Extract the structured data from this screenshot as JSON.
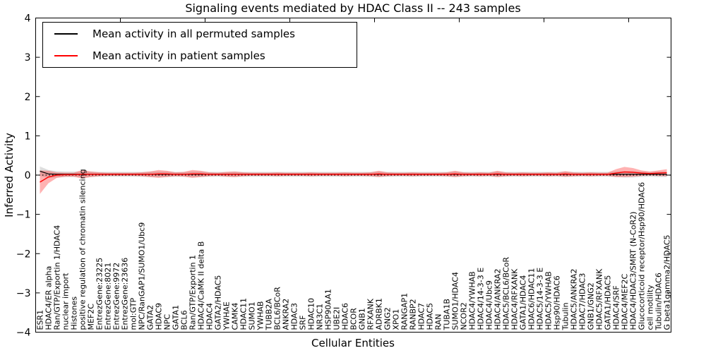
{
  "header": {
    "title": "Signaling events mediated by HDAC Class II -- 243 samples"
  },
  "axes": {
    "x_label": "Cellular Entities",
    "y_label": "Inferred Activity"
  },
  "chart_data": {
    "type": "line",
    "title": "Signaling events mediated by HDAC Class II -- 243 samples",
    "xlabel": "Cellular Entities",
    "ylabel": "Inferred Activity",
    "ylim": [
      -4,
      4
    ],
    "yticks": [
      -4,
      -3,
      -2,
      -1,
      0,
      1,
      2,
      3,
      4
    ],
    "grid": false,
    "legend_position": "upper left",
    "zero_line": {
      "y": 0,
      "style": "dotted",
      "color": "#000000"
    },
    "categories": [
      "ESR1",
      "HDAC4/ER alpha",
      "Ran/GTP/Exportin 1/HDAC4",
      "nuclear import",
      "Histones",
      "positive regulation of chromatin silencing",
      "MEF2C",
      "EntrezGene:23225",
      "EntrezGene:8021",
      "EntrezGene:9972",
      "EntrezGene:23636",
      "mol:GTP",
      "NPC/RanGAP1/SUMO1/Ubc9",
      "GATA2",
      "HDAC9",
      "NPC",
      "GATA1",
      "BCL6",
      "Ran/GTP/Exportin 1",
      "HDAC4/CaMK II delta B",
      "HDAC4",
      "GATA2/HDAC5",
      "YWHAE",
      "CAMK4",
      "HDAC11",
      "SUMO1",
      "YWHAB",
      "TUBB2A",
      "BCL6/BCoR",
      "ANKRA2",
      "HDAC3",
      "SRF",
      "HDAC10",
      "NR3C1",
      "HSP90AA1",
      "UBE2I",
      "HDAC6",
      "BCOR",
      "GNB1",
      "RFXANK",
      "ADRBK1",
      "GNG2",
      "XPO1",
      "RANGAP1",
      "RANBP2",
      "HDAC7",
      "HDAC5",
      "RAN",
      "TUBA1B",
      "SUMO1/HDAC4",
      "NCOR2",
      "HDAC4/YWHAB",
      "HDAC4/14-3-3 E",
      "HDAC4/Ubc9",
      "HDAC4/ANKRA2",
      "HDAC5/BCL6/BCoR",
      "HDAC4/RFXANK",
      "GATA1/HDAC4",
      "HDAC6/HDAC11",
      "HDAC5/14-3-3 E",
      "HDAC5/YWHAB",
      "Hsp90/HDAC6",
      "Tubulin",
      "HDAC5/ANKRA2",
      "HDAC7/HDAC3",
      "GNB1/GNG2",
      "HDAC5/RFXANK",
      "GATA1/HDAC5",
      "HDAC4/SRF",
      "HDAC4/MEF2C",
      "HDAC4/HDAC3/SMRT (N-CoR2)",
      "Glucocorticoid receptor/Hsp90/HDAC6",
      "cell motility",
      "Tubulin/HDAC6",
      "G beta1gamma2/HDAC5"
    ],
    "series": [
      {
        "name": "Mean activity in all permuted samples",
        "color": "#000000",
        "band_color": "rgba(0,0,0,0.13)",
        "values": [
          0.1,
          0.03,
          0.02,
          0.02,
          0.02,
          0.02,
          0.02,
          0.02,
          0.02,
          0.02,
          0.02,
          0.02,
          0.02,
          0.02,
          0.02,
          0.02,
          0.02,
          0.02,
          0.02,
          0.02,
          0.02,
          0.02,
          0.02,
          0.02,
          0.02,
          0.02,
          0.02,
          0.02,
          0.02,
          0.02,
          0.02,
          0.02,
          0.02,
          0.02,
          0.02,
          0.02,
          0.02,
          0.02,
          0.02,
          0.02,
          0.02,
          0.02,
          0.02,
          0.02,
          0.02,
          0.02,
          0.02,
          0.02,
          0.02,
          0.02,
          0.02,
          0.02,
          0.02,
          0.02,
          0.02,
          0.02,
          0.02,
          0.02,
          0.02,
          0.02,
          0.02,
          0.02,
          0.02,
          0.02,
          0.02,
          0.02,
          0.02,
          0.02,
          0.02,
          0.02,
          0.02,
          0.02,
          0.02,
          0.02,
          0.02
        ],
        "band": [
          0.12,
          0.1,
          0.08,
          0.07,
          0.07,
          0.07,
          0.07,
          0.06,
          0.06,
          0.06,
          0.06,
          0.06,
          0.06,
          0.07,
          0.07,
          0.07,
          0.06,
          0.06,
          0.07,
          0.07,
          0.06,
          0.06,
          0.06,
          0.07,
          0.06,
          0.06,
          0.06,
          0.06,
          0.06,
          0.06,
          0.06,
          0.06,
          0.06,
          0.06,
          0.06,
          0.06,
          0.06,
          0.06,
          0.06,
          0.06,
          0.07,
          0.06,
          0.06,
          0.06,
          0.06,
          0.06,
          0.06,
          0.06,
          0.06,
          0.07,
          0.06,
          0.06,
          0.06,
          0.06,
          0.07,
          0.06,
          0.06,
          0.06,
          0.06,
          0.06,
          0.06,
          0.06,
          0.07,
          0.06,
          0.06,
          0.06,
          0.06,
          0.06,
          0.07,
          0.08,
          0.08,
          0.07,
          0.06,
          0.07,
          0.07
        ]
      },
      {
        "name": "Mean activity in patient samples",
        "color": "#ff0000",
        "band_color": "rgba(255,0,0,0.30)",
        "values": [
          -0.18,
          -0.05,
          0.0,
          0.01,
          0.01,
          0.02,
          0.02,
          0.02,
          0.02,
          0.02,
          0.02,
          0.02,
          0.02,
          0.02,
          0.03,
          0.03,
          0.02,
          0.02,
          0.03,
          0.03,
          0.02,
          0.02,
          0.02,
          0.02,
          0.02,
          0.02,
          0.02,
          0.02,
          0.02,
          0.02,
          0.02,
          0.02,
          0.02,
          0.02,
          0.02,
          0.02,
          0.02,
          0.02,
          0.02,
          0.02,
          0.03,
          0.02,
          0.02,
          0.02,
          0.02,
          0.02,
          0.02,
          0.02,
          0.02,
          0.03,
          0.02,
          0.02,
          0.02,
          0.02,
          0.03,
          0.02,
          0.02,
          0.02,
          0.02,
          0.02,
          0.02,
          0.02,
          0.03,
          0.02,
          0.02,
          0.02,
          0.02,
          0.02,
          0.05,
          0.08,
          0.07,
          0.05,
          0.04,
          0.05,
          0.06
        ],
        "band": [
          0.3,
          0.16,
          0.07,
          0.05,
          0.05,
          0.11,
          0.07,
          0.05,
          0.04,
          0.04,
          0.04,
          0.04,
          0.05,
          0.07,
          0.1,
          0.08,
          0.05,
          0.06,
          0.1,
          0.08,
          0.05,
          0.04,
          0.06,
          0.07,
          0.05,
          0.04,
          0.04,
          0.04,
          0.05,
          0.04,
          0.04,
          0.04,
          0.05,
          0.04,
          0.04,
          0.04,
          0.05,
          0.04,
          0.04,
          0.05,
          0.08,
          0.05,
          0.04,
          0.04,
          0.05,
          0.04,
          0.04,
          0.04,
          0.05,
          0.08,
          0.05,
          0.04,
          0.05,
          0.04,
          0.08,
          0.05,
          0.04,
          0.05,
          0.04,
          0.04,
          0.05,
          0.04,
          0.07,
          0.05,
          0.04,
          0.05,
          0.04,
          0.04,
          0.1,
          0.13,
          0.11,
          0.07,
          0.05,
          0.07,
          0.09
        ]
      }
    ]
  }
}
